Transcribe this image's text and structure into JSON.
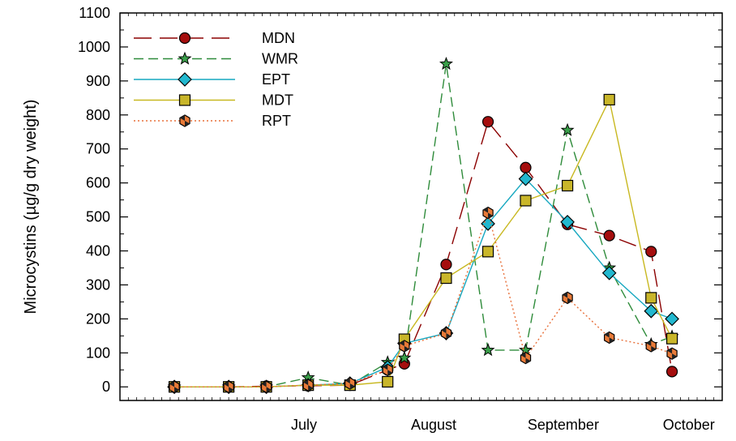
{
  "chart_data": {
    "type": "line",
    "ylabel": "Microcystins (µg/g dry weight)",
    "ylim": [
      -40,
      1100
    ],
    "yticks": [
      0,
      100,
      200,
      300,
      400,
      500,
      600,
      700,
      800,
      900,
      1000,
      1100
    ],
    "x_domain": [
      "2013-06-01",
      "2013-10-23"
    ],
    "x_tick_labels": [
      {
        "label": "July",
        "date": "2013-07-15"
      },
      {
        "label": "August",
        "date": "2013-08-15"
      },
      {
        "label": "September",
        "date": "2013-09-15"
      },
      {
        "label": "October",
        "date": "2013-10-15"
      }
    ],
    "grid": false,
    "legend_position": "top-left",
    "series": [
      {
        "name": "MDN",
        "color": "#8b0000",
        "marker_fill": "#a50e0e",
        "line_style": "long-dash",
        "marker": "circle",
        "points": [
          {
            "x": "2013-06-14",
            "y": 0
          },
          {
            "x": "2013-06-27",
            "y": 0
          },
          {
            "x": "2013-07-06",
            "y": 2
          },
          {
            "x": "2013-07-16",
            "y": 3
          },
          {
            "x": "2013-07-26",
            "y": 5
          },
          {
            "x": "2013-08-04",
            "y": 50
          },
          {
            "x": "2013-08-08",
            "y": 68
          },
          {
            "x": "2013-08-18",
            "y": 360
          },
          {
            "x": "2013-08-28",
            "y": 780
          },
          {
            "x": "2013-09-06",
            "y": 645
          },
          {
            "x": "2013-09-16",
            "y": 478
          },
          {
            "x": "2013-09-26",
            "y": 445
          },
          {
            "x": "2013-10-06",
            "y": 398
          },
          {
            "x": "2013-10-11",
            "y": 45
          }
        ]
      },
      {
        "name": "WMR",
        "color": "#2e8b3a",
        "marker_fill": "#3aa04a",
        "line_style": "medium-dash",
        "marker": "star",
        "points": [
          {
            "x": "2013-06-14",
            "y": 0
          },
          {
            "x": "2013-06-27",
            "y": 0
          },
          {
            "x": "2013-07-06",
            "y": 0
          },
          {
            "x": "2013-07-16",
            "y": 27
          },
          {
            "x": "2013-07-26",
            "y": 5
          },
          {
            "x": "2013-08-04",
            "y": 72
          },
          {
            "x": "2013-08-08",
            "y": 85
          },
          {
            "x": "2013-08-18",
            "y": 950
          },
          {
            "x": "2013-08-28",
            "y": 108
          },
          {
            "x": "2013-09-06",
            "y": 108
          },
          {
            "x": "2013-09-16",
            "y": 755
          },
          {
            "x": "2013-09-26",
            "y": 350
          },
          {
            "x": "2013-10-06",
            "y": 125
          },
          {
            "x": "2013-10-11",
            "y": 148
          }
        ]
      },
      {
        "name": "EPT",
        "color": "#17a8c0",
        "marker_fill": "#22b8cf",
        "line_style": "solid",
        "marker": "diamond",
        "points": [
          {
            "x": "2013-06-14",
            "y": 0
          },
          {
            "x": "2013-06-27",
            "y": 0
          },
          {
            "x": "2013-07-06",
            "y": 0
          },
          {
            "x": "2013-07-16",
            "y": 5
          },
          {
            "x": "2013-07-26",
            "y": 10
          },
          {
            "x": "2013-08-04",
            "y": 58
          },
          {
            "x": "2013-08-08",
            "y": 128
          },
          {
            "x": "2013-08-18",
            "y": 158
          },
          {
            "x": "2013-08-28",
            "y": 480
          },
          {
            "x": "2013-09-06",
            "y": 612
          },
          {
            "x": "2013-09-16",
            "y": 485
          },
          {
            "x": "2013-09-26",
            "y": 335
          },
          {
            "x": "2013-10-06",
            "y": 223
          },
          {
            "x": "2013-10-11",
            "y": 200
          }
        ]
      },
      {
        "name": "MDT",
        "color": "#c8b820",
        "marker_fill": "#c9b62a",
        "line_style": "solid",
        "marker": "square",
        "points": [
          {
            "x": "2013-06-14",
            "y": 0
          },
          {
            "x": "2013-06-27",
            "y": 0
          },
          {
            "x": "2013-07-06",
            "y": 0
          },
          {
            "x": "2013-07-16",
            "y": 5
          },
          {
            "x": "2013-07-26",
            "y": 5
          },
          {
            "x": "2013-08-04",
            "y": 15
          },
          {
            "x": "2013-08-08",
            "y": 140
          },
          {
            "x": "2013-08-18",
            "y": 320
          },
          {
            "x": "2013-08-28",
            "y": 398
          },
          {
            "x": "2013-09-06",
            "y": 548
          },
          {
            "x": "2013-09-16",
            "y": 592
          },
          {
            "x": "2013-09-26",
            "y": 845
          },
          {
            "x": "2013-10-06",
            "y": 262
          },
          {
            "x": "2013-10-11",
            "y": 142
          }
        ]
      },
      {
        "name": "RPT",
        "color": "#e8703a",
        "marker_fill": "#e87a38",
        "line_style": "dotted",
        "marker": "hexagon",
        "points": [
          {
            "x": "2013-06-14",
            "y": 0
          },
          {
            "x": "2013-06-27",
            "y": 0
          },
          {
            "x": "2013-07-06",
            "y": 0
          },
          {
            "x": "2013-07-16",
            "y": 5
          },
          {
            "x": "2013-07-26",
            "y": 10
          },
          {
            "x": "2013-08-04",
            "y": 50
          },
          {
            "x": "2013-08-08",
            "y": 120
          },
          {
            "x": "2013-08-18",
            "y": 158
          },
          {
            "x": "2013-08-28",
            "y": 512
          },
          {
            "x": "2013-09-06",
            "y": 85
          },
          {
            "x": "2013-09-16",
            "y": 262
          },
          {
            "x": "2013-09-26",
            "y": 145
          },
          {
            "x": "2013-10-06",
            "y": 120
          },
          {
            "x": "2013-10-11",
            "y": 98
          }
        ]
      }
    ]
  }
}
